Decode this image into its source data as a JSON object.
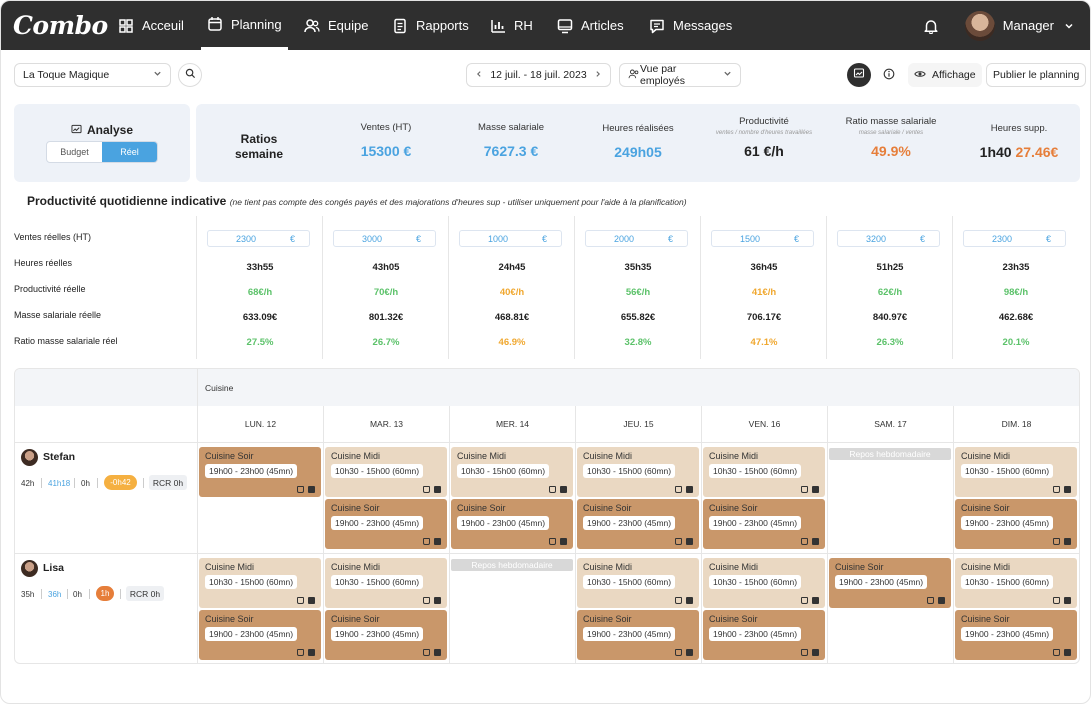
{
  "nav": {
    "logo": "Combo",
    "items": [
      {
        "label": "Acceuil",
        "icon": "grid-icon"
      },
      {
        "label": "Planning",
        "icon": "calendar-icon"
      },
      {
        "label": "Equipe",
        "icon": "team-icon"
      },
      {
        "label": "Rapports",
        "icon": "document-icon"
      },
      {
        "label": "RH",
        "icon": "bar-chart-icon"
      },
      {
        "label": "Articles",
        "icon": "monitor-icon"
      },
      {
        "label": "Messages",
        "icon": "message-icon"
      }
    ],
    "active": "Planning",
    "user": "Manager"
  },
  "toolbar": {
    "restaurant": "La Toque Magique",
    "date_range": "12 juil. - 18 juil. 2023",
    "view": "Vue par employés",
    "display_label": "Affichage",
    "publish_label": "Publier le planning"
  },
  "analyse": {
    "title": "Analyse",
    "budget": "Budget",
    "reel": "Réel"
  },
  "ratios": {
    "title_line1": "Ratios",
    "title_line2": "semaine",
    "ventes_label": "Ventes (HT)",
    "ventes_value": "15300 €",
    "masse_label": "Masse salariale",
    "masse_value": "7627.3 €",
    "heures_label": "Heures réalisées",
    "heures_value": "249h05",
    "prod_label": "Productivité",
    "prod_sub": "ventes / nombre d'heures travaillées",
    "prod_value": "61 €/h",
    "ratio_label": "Ratio masse salariale",
    "ratio_sub": "masse salariale / ventes",
    "ratio_value": "49.9%",
    "supp_label": "Heures supp.",
    "supp_hours": "1h40",
    "supp_amount": "27.46€"
  },
  "daily": {
    "title": "Productivité quotidienne indicative",
    "note": "(ne tient pas compte des congés payés et des majorations d'heures sup - utiliser uniquement pour l'aide à la planification)",
    "row_labels": [
      "Ventes réelles (HT)",
      "Heures réelles",
      "Productivité réelle",
      "Masse salariale réelle",
      "Ratio masse salariale réel"
    ],
    "currency": "€",
    "days": [
      {
        "ventes": "2300",
        "heures": "33h55",
        "prod": "68€/h",
        "prod_color": "#5cc26a",
        "masse": "633.09€",
        "ratio": "27.5%",
        "ratio_color": "#5cc26a"
      },
      {
        "ventes": "3000",
        "heures": "43h05",
        "prod": "70€/h",
        "prod_color": "#5cc26a",
        "masse": "801.32€",
        "ratio": "26.7%",
        "ratio_color": "#5cc26a"
      },
      {
        "ventes": "1000",
        "heures": "24h45",
        "prod": "40€/h",
        "prod_color": "#f0a830",
        "masse": "468.81€",
        "ratio": "46.9%",
        "ratio_color": "#f0a830"
      },
      {
        "ventes": "2000",
        "heures": "35h35",
        "prod": "56€/h",
        "prod_color": "#5cc26a",
        "masse": "655.82€",
        "ratio": "32.8%",
        "ratio_color": "#5cc26a"
      },
      {
        "ventes": "1500",
        "heures": "36h45",
        "prod": "41€/h",
        "prod_color": "#f0a830",
        "masse": "706.17€",
        "ratio": "47.1%",
        "ratio_color": "#f0a830"
      },
      {
        "ventes": "3200",
        "heures": "51h25",
        "prod": "62€/h",
        "prod_color": "#5cc26a",
        "masse": "840.97€",
        "ratio": "26.3%",
        "ratio_color": "#5cc26a"
      },
      {
        "ventes": "2300",
        "heures": "23h35",
        "prod": "98€/h",
        "prod_color": "#5cc26a",
        "masse": "462.68€",
        "ratio": "20.1%",
        "ratio_color": "#5cc26a"
      }
    ]
  },
  "planning": {
    "section": "Cuisine",
    "days": [
      "LUN. 12",
      "MAR. 13",
      "MER. 14",
      "JEU. 15",
      "VEN. 16",
      "SAM. 17",
      "DIM. 18"
    ],
    "repos_label": "Repos hebdomadaire",
    "employees": [
      {
        "name": "Stefan",
        "contract": "42h",
        "planned": "41h18",
        "zero": "0h",
        "delta": "-0h42",
        "delta_color": "#f5b041",
        "rcr": "RCR 0h",
        "shifts": [
          [
            {
              "title": "Cuisine Soir",
              "time": "19h00 - 23h00 (45mn)",
              "tone": "dark"
            }
          ],
          [
            {
              "title": "Cuisine Midi",
              "time": "10h30 - 15h00 (60mn)",
              "tone": "light"
            },
            {
              "title": "Cuisine Soir",
              "time": "19h00 - 23h00 (45mn)",
              "tone": "dark"
            }
          ],
          [
            {
              "title": "Cuisine Midi",
              "time": "10h30 - 15h00 (60mn)",
              "tone": "light"
            },
            {
              "title": "Cuisine Soir",
              "time": "19h00 - 23h00 (45mn)",
              "tone": "dark"
            }
          ],
          [
            {
              "title": "Cuisine Midi",
              "time": "10h30 - 15h00 (60mn)",
              "tone": "light"
            },
            {
              "title": "Cuisine Soir",
              "time": "19h00 - 23h00 (45mn)",
              "tone": "dark"
            }
          ],
          [
            {
              "title": "Cuisine Midi",
              "time": "10h30 - 15h00 (60mn)",
              "tone": "light"
            },
            {
              "title": "Cuisine Soir",
              "time": "19h00 - 23h00 (45mn)",
              "tone": "dark"
            }
          ],
          [],
          [
            {
              "title": "Cuisine Midi",
              "time": "10h30 - 15h00 (60mn)",
              "tone": "light"
            },
            {
              "title": "Cuisine Soir",
              "time": "19h00 - 23h00 (45mn)",
              "tone": "dark"
            }
          ]
        ],
        "repos_day": 5
      },
      {
        "name": "Lisa",
        "contract": "35h",
        "planned": "36h",
        "zero": "0h",
        "delta": "1h",
        "delta_color": "#e67e3a",
        "rcr": "RCR 0h",
        "shifts": [
          [
            {
              "title": "Cuisine Midi",
              "time": "10h30 - 15h00 (60mn)",
              "tone": "light"
            },
            {
              "title": "Cuisine Soir",
              "time": "19h00 - 23h00 (45mn)",
              "tone": "dark"
            }
          ],
          [
            {
              "title": "Cuisine Midi",
              "time": "10h30 - 15h00 (60mn)",
              "tone": "light"
            },
            {
              "title": "Cuisine Soir",
              "time": "19h00 - 23h00 (45mn)",
              "tone": "dark"
            }
          ],
          [],
          [
            {
              "title": "Cuisine Midi",
              "time": "10h30 - 15h00 (60mn)",
              "tone": "light"
            },
            {
              "title": "Cuisine Soir",
              "time": "19h00 - 23h00 (45mn)",
              "tone": "dark"
            }
          ],
          [
            {
              "title": "Cuisine Midi",
              "time": "10h30 - 15h00 (60mn)",
              "tone": "light"
            },
            {
              "title": "Cuisine Soir",
              "time": "19h00 - 23h00 (45mn)",
              "tone": "dark"
            }
          ],
          [
            {
              "title": "Cuisine Soir",
              "time": "19h00 - 23h00 (45mn)",
              "tone": "dark"
            }
          ],
          [
            {
              "title": "Cuisine Midi",
              "time": "10h30 - 15h00 (60mn)",
              "tone": "light"
            },
            {
              "title": "Cuisine Soir",
              "time": "19h00 - 23h00 (45mn)",
              "tone": "dark"
            }
          ]
        ],
        "repos_day": 2
      }
    ]
  },
  "colors": {
    "blue": "#4aa3e0",
    "orange": "#e67e3a",
    "green": "#5cc26a",
    "shift_light": "#ead8c2",
    "shift_dark": "#c9976a"
  }
}
